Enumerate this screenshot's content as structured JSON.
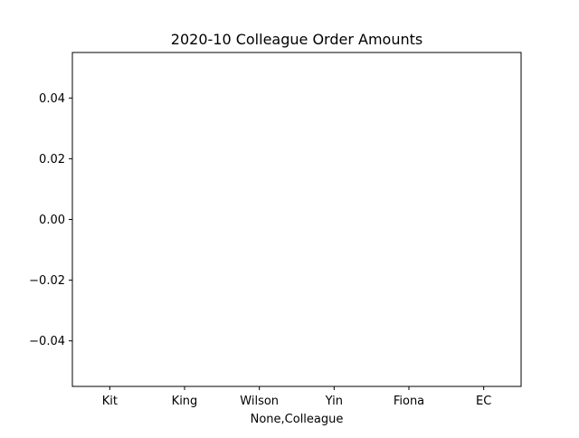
{
  "chart_data": {
    "type": "bar",
    "title": "2020-10 Colleague Order Amounts",
    "xlabel": "None,Colleague",
    "ylabel": "",
    "categories": [
      "Kit",
      "King",
      "Wilson",
      "Yin",
      "Fiona",
      "EC"
    ],
    "values": [
      0,
      0,
      0,
      0,
      0,
      0
    ],
    "ylim": [
      -0.055,
      0.055
    ],
    "yticks": [
      -0.04,
      -0.02,
      0.0,
      0.02,
      0.04
    ],
    "ytick_labels": [
      "−0.04",
      "−0.02",
      "0.00",
      "0.02",
      "0.04"
    ],
    "grid": false,
    "legend": "none"
  }
}
